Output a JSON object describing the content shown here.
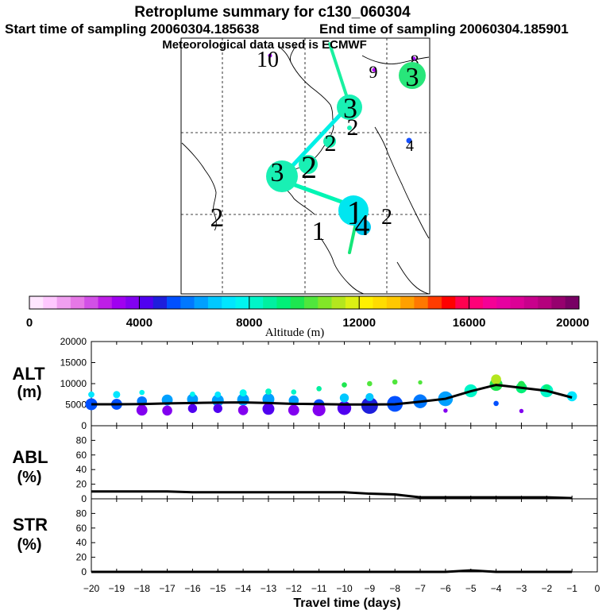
{
  "header": {
    "title": "Retroplume summary for c130_060304",
    "start_label": "Start time of sampling 20060304.185638",
    "end_label": "End time of sampling 20060304.185901",
    "met_label": "Meteorological data used is ECMWF"
  },
  "map": {
    "segment_colors": [
      "#19f0a0",
      "#00f0e6",
      "#00f5b4",
      "#14e678"
    ],
    "plume_markers": [
      {
        "label": "10",
        "color": "#a000ff"
      },
      {
        "label": "9",
        "color": "#b400ff"
      },
      {
        "label": "8",
        "color": "#a000ff"
      },
      {
        "label": "3",
        "color": "#28e67a"
      },
      {
        "label": "3",
        "color": "#19f0b4"
      },
      {
        "label": "2",
        "color": "#19f0b4"
      },
      {
        "label": "4",
        "color": "#1450ff"
      },
      {
        "label": "3",
        "color": "#19f0b4"
      },
      {
        "label": "2",
        "color": "#19f0b4"
      },
      {
        "label": "2",
        "color": "#19f0b4"
      },
      {
        "label": "2",
        "color": "#000000"
      },
      {
        "label": "1",
        "color": "#00e6f0"
      },
      {
        "label": "4",
        "color": "#00c8f0"
      },
      {
        "label": "2",
        "color": "#000000"
      },
      {
        "label": "1",
        "color": "#000000"
      }
    ]
  },
  "colorbar": {
    "title": "Altitude (m)",
    "tick_labels": [
      "0",
      "4000",
      "8000",
      "12000",
      "16000",
      "20000"
    ],
    "range": [
      0,
      20000
    ],
    "colors": [
      "#ffe6ff",
      "#ffc8ff",
      "#f0a0f0",
      "#e678e6",
      "#d250e6",
      "#be1ee6",
      "#a000f0",
      "#8200f0",
      "#5000f0",
      "#1e1edc",
      "#0050ff",
      "#0078ff",
      "#00a0ff",
      "#00c8ff",
      "#00e6ff",
      "#00f5f0",
      "#00f5c8",
      "#00f0a0",
      "#00f078",
      "#1ee650",
      "#50e63c",
      "#82e628",
      "#b4e61e",
      "#dcf014",
      "#fff000",
      "#ffdc00",
      "#ffc800",
      "#ffa000",
      "#ff7800",
      "#ff3c00",
      "#ff0000",
      "#ff0050",
      "#ff0078",
      "#f50096",
      "#e600a0",
      "#dc0096",
      "#c8008c",
      "#b4007d",
      "#96006e",
      "#780064"
    ]
  },
  "chart_data": [
    {
      "type": "scatter",
      "name": "ALT",
      "ylabel_lines": [
        "ALT",
        "(m)"
      ],
      "xlim": [
        -20,
        0
      ],
      "ylim": [
        0,
        20000
      ],
      "yticks": [
        "0",
        "5000",
        "10000",
        "15000",
        "20000"
      ],
      "line": {
        "x": [
          -20,
          -19,
          -18,
          -17,
          -16,
          -15,
          -14,
          -13,
          -12,
          -11,
          -10,
          -9,
          -8,
          -7,
          -6,
          -5,
          -4,
          -3,
          -2,
          -1
        ],
        "y": [
          5100,
          5100,
          5150,
          5300,
          5400,
          5500,
          5550,
          5400,
          5200,
          5150,
          5050,
          5050,
          5100,
          5700,
          6400,
          8200,
          9700,
          9000,
          8300,
          6700
        ]
      },
      "bubbles": [
        {
          "x": -20,
          "y": 5100,
          "s": 1.0
        },
        {
          "x": -20,
          "y": 7400,
          "s": 0.4
        },
        {
          "x": -19,
          "y": 5100,
          "s": 0.9
        },
        {
          "x": -19,
          "y": 7400,
          "s": 0.5
        },
        {
          "x": -18,
          "y": 5800,
          "s": 0.8
        },
        {
          "x": -18,
          "y": 3700,
          "s": 0.9
        },
        {
          "x": -18,
          "y": 7900,
          "s": 0.3
        },
        {
          "x": -17,
          "y": 6100,
          "s": 0.9
        },
        {
          "x": -17,
          "y": 3600,
          "s": 0.8
        },
        {
          "x": -16,
          "y": 6300,
          "s": 0.9
        },
        {
          "x": -16,
          "y": 4100,
          "s": 0.7
        },
        {
          "x": -16,
          "y": 7500,
          "s": 0.3
        },
        {
          "x": -15,
          "y": 6000,
          "s": 1.0
        },
        {
          "x": -15,
          "y": 4100,
          "s": 0.7
        },
        {
          "x": -15,
          "y": 7400,
          "s": 0.4
        },
        {
          "x": -14,
          "y": 6200,
          "s": 1.0
        },
        {
          "x": -14,
          "y": 3700,
          "s": 0.8
        },
        {
          "x": -14,
          "y": 7800,
          "s": 0.5
        },
        {
          "x": -13,
          "y": 6300,
          "s": 1.0
        },
        {
          "x": -13,
          "y": 4000,
          "s": 1.0
        },
        {
          "x": -13,
          "y": 8100,
          "s": 0.4
        },
        {
          "x": -12,
          "y": 6000,
          "s": 0.8
        },
        {
          "x": -12,
          "y": 3700,
          "s": 0.9
        },
        {
          "x": -12,
          "y": 8000,
          "s": 0.3
        },
        {
          "x": -11,
          "y": 5000,
          "s": 0.9
        },
        {
          "x": -11,
          "y": 3800,
          "s": 1.1
        },
        {
          "x": -11,
          "y": 8800,
          "s": 0.3
        },
        {
          "x": -10,
          "y": 4200,
          "s": 1.2
        },
        {
          "x": -10,
          "y": 6600,
          "s": 0.7
        },
        {
          "x": -10,
          "y": 9700,
          "s": 0.3
        },
        {
          "x": -9,
          "y": 4800,
          "s": 1.5
        },
        {
          "x": -9,
          "y": 6800,
          "s": 0.6
        },
        {
          "x": -9,
          "y": 10000,
          "s": 0.3
        },
        {
          "x": -8,
          "y": 5200,
          "s": 1.4
        },
        {
          "x": -8,
          "y": 10400,
          "s": 0.3
        },
        {
          "x": -7,
          "y": 5800,
          "s": 1.2
        },
        {
          "x": -7,
          "y": 10300,
          "s": 0.2
        },
        {
          "x": -6,
          "y": 6400,
          "s": 1.3
        },
        {
          "x": -6,
          "y": 3600,
          "s": 0.2
        },
        {
          "x": -5,
          "y": 8300,
          "s": 1.1
        },
        {
          "x": -4,
          "y": 9800,
          "s": 1.1
        },
        {
          "x": -4,
          "y": 11000,
          "s": 0.8
        },
        {
          "x": -4,
          "y": 5300,
          "s": 0.3
        },
        {
          "x": -3,
          "y": 9000,
          "s": 0.9
        },
        {
          "x": -3,
          "y": 9800,
          "s": 0.5
        },
        {
          "x": -3,
          "y": 3500,
          "s": 0.2
        },
        {
          "x": -2,
          "y": 8300,
          "s": 1.1
        },
        {
          "x": -2,
          "y": 9000,
          "s": 0.5
        },
        {
          "x": -1,
          "y": 7000,
          "s": 0.8
        }
      ]
    },
    {
      "type": "line",
      "name": "ABL",
      "ylabel_lines": [
        "ABL",
        "(%)"
      ],
      "xlim": [
        -20,
        0
      ],
      "ylim": [
        0,
        100
      ],
      "yticks": [
        "0",
        "20",
        "40",
        "60",
        "80"
      ],
      "x": [
        -20,
        -19,
        -18,
        -17,
        -16,
        -15,
        -14,
        -13,
        -12,
        -11,
        -10,
        -9,
        -8,
        -7,
        -6,
        -5,
        -4,
        -3,
        -2,
        -1
      ],
      "y": [
        10,
        10,
        10,
        10,
        9,
        9,
        9,
        9,
        9,
        9,
        9,
        7,
        6,
        2,
        2,
        2,
        2,
        2,
        2,
        1
      ]
    },
    {
      "type": "line",
      "name": "STR",
      "ylabel_lines": [
        "STR",
        "(%)"
      ],
      "xlim": [
        -20,
        0
      ],
      "ylim": [
        0,
        100
      ],
      "yticks": [
        "0",
        "20",
        "40",
        "60",
        "80"
      ],
      "x": [
        -20,
        -19,
        -18,
        -17,
        -16,
        -15,
        -14,
        -13,
        -12,
        -11,
        -10,
        -9,
        -8,
        -7,
        -6,
        -5,
        -4,
        -3,
        -2,
        -1
      ],
      "y": [
        0,
        0,
        0,
        0,
        0,
        0,
        0,
        0,
        0,
        0,
        0,
        0,
        0,
        0,
        0,
        2,
        0,
        0,
        0,
        0
      ]
    }
  ],
  "xaxis": {
    "title": "Travel time (days)",
    "tick_labels": [
      "−20",
      "−19",
      "−18",
      "−17",
      "−16",
      "−15",
      "−14",
      "−13",
      "−12",
      "−11",
      "−10",
      "−9",
      "−8",
      "−7",
      "−6",
      "−5",
      "−4",
      "−3",
      "−2",
      "−1",
      "0"
    ]
  }
}
